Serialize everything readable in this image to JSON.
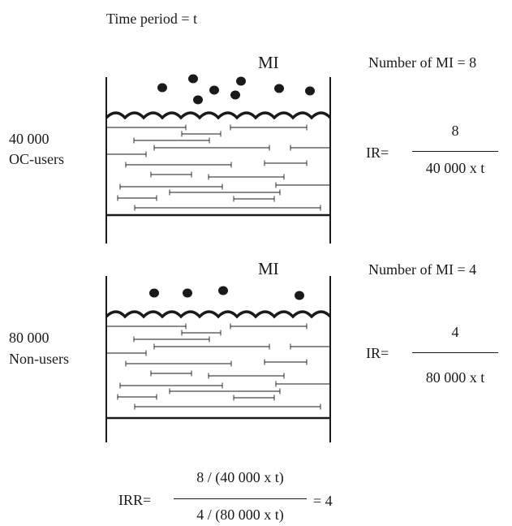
{
  "header": {
    "time_period": "Time period = t"
  },
  "panels": [
    {
      "event_label": "MI",
      "group_count": "40 000",
      "group_name": "OC-users",
      "events_text": "Number of MI = 8",
      "event_count": 8,
      "ir_label": "IR=",
      "ir_numerator": "8",
      "ir_denominator": "40 000 x t"
    },
    {
      "event_label": "MI",
      "group_count": "80 000",
      "group_name": "Non-users",
      "events_text": "Number of MI = 4",
      "event_count": 4,
      "ir_label": "IR=",
      "ir_numerator": "4",
      "ir_denominator": "80 000 x t"
    }
  ],
  "irr": {
    "label": "IRR=",
    "numerator": "8 / (40 000 x t)",
    "denominator": "4 / (80 000 x t)",
    "result": "= 4"
  }
}
